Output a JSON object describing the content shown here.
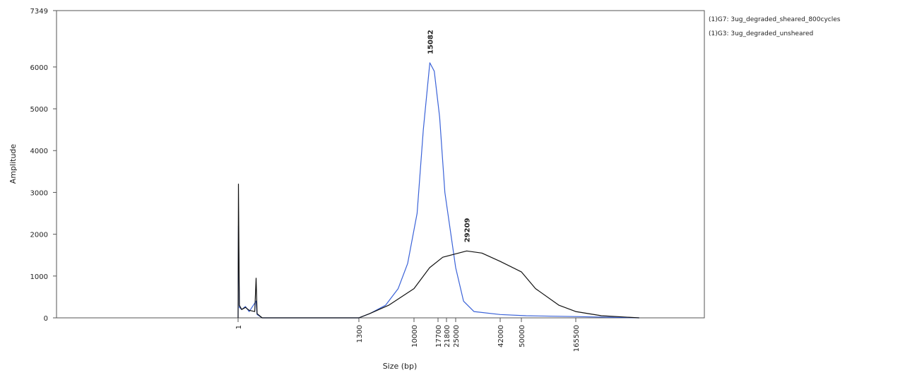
{
  "chart_data": {
    "type": "line",
    "xlabel": "Size (bp)",
    "ylabel": "Amplitude",
    "ylim": [
      0,
      7349
    ],
    "yticks": [
      0,
      1000,
      2000,
      3000,
      4000,
      5000,
      6000,
      7349
    ],
    "xticks": [
      1,
      1300,
      10000,
      17700,
      21800,
      25000,
      42000,
      50000,
      165500
    ],
    "series": [
      {
        "name": "(1)G7: 3ug_degraded_sheared_800cycles",
        "color": "#3a62d8",
        "peak": 15082,
        "x": [
          1,
          5,
          10,
          15,
          40,
          80,
          120,
          195,
          205,
          260,
          1300,
          3000,
          5500,
          7500,
          9000,
          11000,
          13000,
          15082,
          16500,
          18500,
          21000,
          25000,
          28000,
          32000,
          42000,
          60000,
          165500,
          300000
        ],
        "values": [
          0,
          2200,
          1300,
          250,
          200,
          270,
          150,
          400,
          80,
          0,
          0,
          100,
          300,
          700,
          1300,
          2500,
          4500,
          6100,
          5900,
          4800,
          3000,
          1200,
          400,
          150,
          80,
          50,
          30,
          0
        ]
      },
      {
        "name": "(1)G3: 3ug_degraded_unsheared",
        "color": "#111111",
        "peak": 29209,
        "x": [
          1,
          5,
          15,
          40,
          80,
          120,
          180,
          195,
          205,
          260,
          1300,
          3000,
          6000,
          10000,
          15000,
          20000,
          29209,
          35000,
          42000,
          50000,
          80000,
          130000,
          165500,
          220000,
          300000
        ],
        "values": [
          0,
          3200,
          300,
          200,
          250,
          180,
          150,
          950,
          100,
          0,
          0,
          100,
          300,
          700,
          1200,
          1450,
          1600,
          1550,
          1350,
          1100,
          700,
          300,
          150,
          50,
          0
        ]
      }
    ]
  }
}
